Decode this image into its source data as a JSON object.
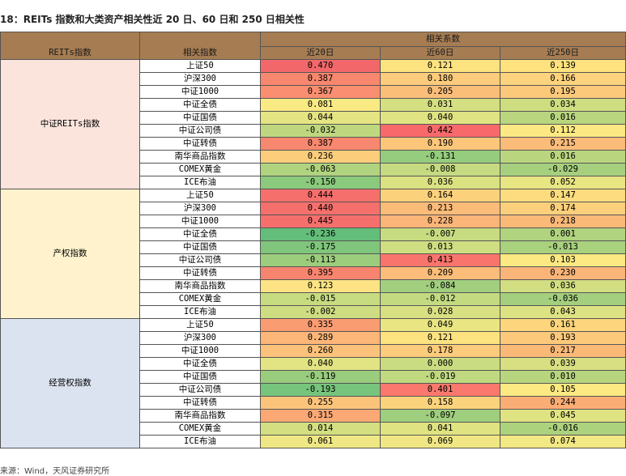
{
  "title": "18：REITs 指数和大类资产相关性近 20 日、60 日和 250 日相关性",
  "header": {
    "col_reits": "REITs指数",
    "col_related": "相关指数",
    "col_coef": "相关系数",
    "col_20": "近20日",
    "col_60": "近60日",
    "col_250": "近250日"
  },
  "groups": [
    {
      "name": "中证REITs指数",
      "bg": "#fbe4dc",
      "rows": [
        {
          "index": "上证50",
          "v20": "0.470",
          "v60": "0.121",
          "v250": "0.139",
          "c20": "#f2686a",
          "c60": "#fde37f",
          "c250": "#fde27e"
        },
        {
          "index": "沪深300",
          "v20": "0.387",
          "v60": "0.180",
          "v250": "0.166",
          "c20": "#f7876e",
          "c60": "#fccb7b",
          "c250": "#fdd37d"
        },
        {
          "index": "中证1000",
          "v20": "0.367",
          "v60": "0.205",
          "v250": "0.195",
          "c20": "#f98e70",
          "c60": "#fbbe79",
          "c250": "#fcc87a"
        },
        {
          "index": "中证全债",
          "v20": "0.081",
          "v60": "0.031",
          "v250": "0.034",
          "c20": "#f9ea84",
          "c60": "#d4df81",
          "c250": "#cddd80"
        },
        {
          "index": "中证国债",
          "v20": "0.044",
          "v60": "0.040",
          "v250": "0.016",
          "c20": "#e5e483",
          "c60": "#e0e382",
          "c250": "#b9d67f"
        },
        {
          "index": "中证公司债",
          "v20": "-0.032",
          "v60": "0.442",
          "v250": "0.112",
          "c20": "#bfd880",
          "c60": "#f8696b",
          "c250": "#fde983"
        },
        {
          "index": "中证转债",
          "v20": "0.387",
          "v60": "0.190",
          "v250": "0.215",
          "c20": "#f7876e",
          "c60": "#fbc67a",
          "c250": "#fbbb79"
        },
        {
          "index": "南华商品指数",
          "v20": "0.236",
          "v60": "-0.131",
          "v250": "0.016",
          "c20": "#fcce7c",
          "c60": "#95cc7d",
          "c250": "#b9d67f"
        },
        {
          "index": "COMEX黄金",
          "v20": "-0.063",
          "v60": "-0.008",
          "v250": "-0.029",
          "c20": "#b0d37f",
          "c60": "#c5da81",
          "c250": "#a7d07e"
        },
        {
          "index": "ICE布油",
          "v20": "-0.150",
          "v60": "0.036",
          "v250": "0.052",
          "c20": "#8bc97c",
          "c60": "#dae181",
          "c250": "#e8e583"
        }
      ]
    },
    {
      "name": "产权指数",
      "bg": "#fff2cc",
      "rows": [
        {
          "index": "上证50",
          "v20": "0.444",
          "v60": "0.164",
          "v250": "0.147",
          "c20": "#f56f6c",
          "c60": "#fcd17c",
          "c250": "#fcdc7e"
        },
        {
          "index": "沪深300",
          "v20": "0.440",
          "v60": "0.213",
          "v250": "0.174",
          "c20": "#f5706c",
          "c60": "#fbbb79",
          "c250": "#fccf7c"
        },
        {
          "index": "中证1000",
          "v20": "0.445",
          "v60": "0.228",
          "v250": "0.218",
          "c20": "#f56f6c",
          "c60": "#fbb578",
          "c250": "#fbb978"
        },
        {
          "index": "中证全债",
          "v20": "-0.236",
          "v60": "-0.007",
          "v250": "0.001",
          "c20": "#63be7b",
          "c60": "#c7db81",
          "c250": "#b0d37f"
        },
        {
          "index": "中证国债",
          "v20": "-0.175",
          "v60": "0.013",
          "v250": "-0.013",
          "c20": "#7fc67c",
          "c60": "#cfde81",
          "c250": "#a9d17e"
        },
        {
          "index": "中证公司债",
          "v20": "-0.113",
          "v60": "0.413",
          "v250": "0.103",
          "c20": "#9ccd7d",
          "c60": "#f9746c",
          "c250": "#fde982"
        },
        {
          "index": "中证转债",
          "v20": "0.395",
          "v60": "0.209",
          "v250": "0.230",
          "c20": "#f7846e",
          "c60": "#fbbd79",
          "c250": "#fbb478"
        },
        {
          "index": "南华商品指数",
          "v20": "0.123",
          "v60": "-0.084",
          "v250": "0.036",
          "c20": "#fde383",
          "c60": "#a2cf7e",
          "c250": "#d2de81"
        },
        {
          "index": "COMEX黄金",
          "v20": "-0.015",
          "v60": "-0.012",
          "v250": "-0.036",
          "c20": "#c7db80",
          "c60": "#c3da81",
          "c250": "#a3cf7e"
        },
        {
          "index": "ICE布油",
          "v20": "-0.002",
          "v60": "0.028",
          "v250": "0.043",
          "c20": "#cedd81",
          "c60": "#d8e082",
          "c250": "#dde282"
        }
      ]
    },
    {
      "name": "经营权指数",
      "bg": "#dce3f0",
      "rows": [
        {
          "index": "上证50",
          "v20": "0.335",
          "v60": "0.049",
          "v250": "0.161",
          "c20": "#fa9c72",
          "c60": "#e9e583",
          "c250": "#fcd57d"
        },
        {
          "index": "沪深300",
          "v20": "0.289",
          "v60": "0.121",
          "v250": "0.193",
          "c20": "#fbb678",
          "c60": "#fde37f",
          "c250": "#fcc97b"
        },
        {
          "index": "中证1000",
          "v20": "0.260",
          "v60": "0.178",
          "v250": "0.217",
          "c20": "#fcc27b",
          "c60": "#fccb7b",
          "c250": "#fbb978"
        },
        {
          "index": "中证全债",
          "v20": "0.040",
          "v60": "0.000",
          "v250": "0.039",
          "c20": "#e2e383",
          "c60": "#cadc81",
          "c250": "#d7df82"
        },
        {
          "index": "中证国债",
          "v20": "-0.119",
          "v60": "-0.019",
          "v250": "0.010",
          "c20": "#99cc7d",
          "c60": "#c0d980",
          "c250": "#b7d57f"
        },
        {
          "index": "中证公司债",
          "v20": "-0.193",
          "v60": "0.401",
          "v250": "0.105",
          "c20": "#77c47c",
          "c60": "#fa786d",
          "c250": "#fde982"
        },
        {
          "index": "中证转债",
          "v20": "0.255",
          "v60": "0.158",
          "v250": "0.244",
          "c20": "#fcc47b",
          "c60": "#fcd37d",
          "c250": "#fbad76"
        },
        {
          "index": "南华商品指数",
          "v20": "0.315",
          "v60": "-0.097",
          "v250": "0.045",
          "c20": "#fba875",
          "c60": "#9fce7e",
          "c250": "#e0e382"
        },
        {
          "index": "COMEX黄金",
          "v20": "0.014",
          "v60": "0.041",
          "v250": "-0.016",
          "c20": "#d3df81",
          "c60": "#e0e382",
          "c250": "#acd27e"
        },
        {
          "index": "ICE布油",
          "v20": "0.061",
          "v60": "0.069",
          "v250": "0.074",
          "c20": "#eee784",
          "c60": "#f0e784",
          "c250": "#f2e884"
        }
      ]
    }
  ],
  "source": "来源：Wind，天风证券研究所"
}
